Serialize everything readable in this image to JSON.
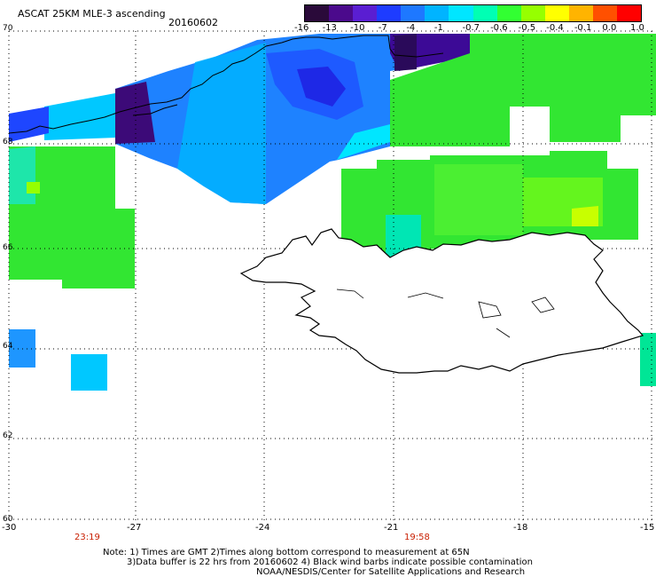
{
  "header": {
    "product": "ASCAT 25KM MLE-3 ascending",
    "date": "20160602"
  },
  "colorbar": {
    "labels": [
      "-16",
      "-13",
      "-10",
      "-7",
      "-4",
      "-1",
      "-0.7",
      "-0.6",
      "-0.5",
      "-0.4",
      "-0.1",
      "0.0",
      "1.0"
    ],
    "colors": [
      "#2a0a3a",
      "#4b0a8c",
      "#5a1ed2",
      "#1e3cff",
      "#1e78ff",
      "#00b4ff",
      "#00e6ff",
      "#00ffb4",
      "#32ff32",
      "#96ff00",
      "#ffff00",
      "#ffb400",
      "#ff5000",
      "#ff0000"
    ]
  },
  "map": {
    "lat_labels": [
      "70",
      "68",
      "66",
      "64",
      "62",
      "60"
    ],
    "lon_labels": [
      "-30",
      "-27",
      "-24",
      "-21",
      "-18",
      "-15"
    ],
    "times": [
      "23:19",
      "19:58"
    ]
  },
  "footer": {
    "line1": "Note: 1) Times are GMT 2)Times along bottom correspond to measurement at 65N",
    "line2": "3)Data buffer is 22 hrs from 20160602 4) Black wind barbs indicate possible contamination",
    "line3": "NOAA/NESDIS/Center for Satellite Applications and Research"
  }
}
